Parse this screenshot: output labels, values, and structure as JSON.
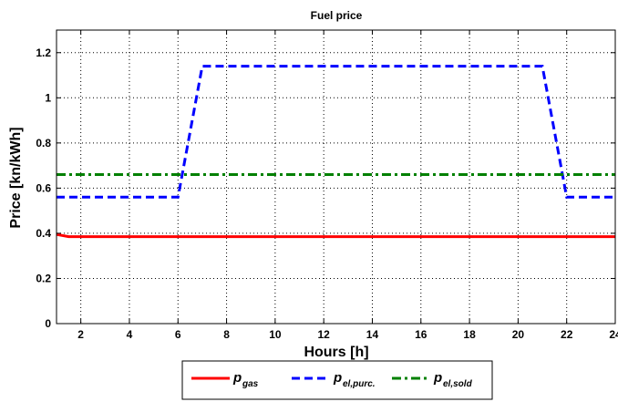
{
  "chart_data": {
    "type": "line",
    "title": "Fuel price",
    "xlabel": "Hours [h]",
    "ylabel": "Price [kn/kWh]",
    "xlim": [
      1,
      24
    ],
    "ylim": [
      0,
      1.3
    ],
    "grid": true,
    "legend_position": "bottom",
    "x_ticks": [
      "2",
      "4",
      "6",
      "8",
      "10",
      "12",
      "14",
      "16",
      "18",
      "20",
      "22",
      "24"
    ],
    "y_ticks": [
      "0",
      "0.2",
      "0.4",
      "0.6",
      "0.8",
      "1",
      "1.2"
    ],
    "series": [
      {
        "name": "p_gas",
        "label_main": "p",
        "label_sub": "gas",
        "color": "#ff0000",
        "style": "solid",
        "x": [
          1,
          1.5,
          24
        ],
        "y": [
          0.395,
          0.385,
          0.385
        ]
      },
      {
        "name": "p_el,purc.",
        "label_main": "p",
        "label_sub": "el,purc.",
        "color": "#0000ff",
        "style": "dashed",
        "x": [
          1,
          6,
          7,
          21,
          22,
          24
        ],
        "y": [
          0.56,
          0.56,
          1.14,
          1.14,
          0.56,
          0.56
        ]
      },
      {
        "name": "p_el,sold",
        "label_main": "p",
        "label_sub": "el,sold",
        "color": "#008000",
        "style": "dashdot",
        "x": [
          1,
          24
        ],
        "y": [
          0.66,
          0.66
        ]
      }
    ]
  }
}
